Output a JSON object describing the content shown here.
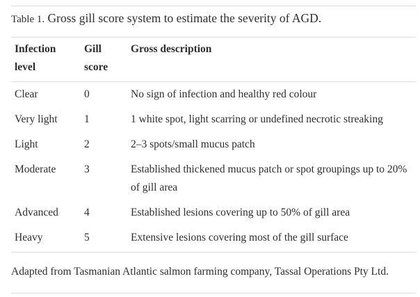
{
  "caption": {
    "label": "Table 1.",
    "title": "Gross gill score system to estimate the severity of AGD."
  },
  "table": {
    "header": [
      "Infection level",
      "Gill score",
      "Gross description"
    ],
    "rows": [
      [
        "Clear",
        "0",
        "No sign of infection and healthy red colour"
      ],
      [
        "Very light",
        "1",
        "1 white spot, light scarring or undefined necrotic streaking"
      ],
      [
        "Light",
        "2",
        "2–3 spots/small mucus patch"
      ],
      [
        "Moderate",
        "3",
        "Established thickened mucus patch or spot groupings up to 20% of gill area"
      ],
      [
        "Advanced",
        "4",
        "Established lesions covering up to 50% of gill area"
      ],
      [
        "Heavy",
        "5",
        "Extensive lesions covering most of the gill surface"
      ]
    ]
  },
  "footnote": "Adapted from Tasmanian Atlantic salmon farming company, Tassal Operations Pty Ltd."
}
